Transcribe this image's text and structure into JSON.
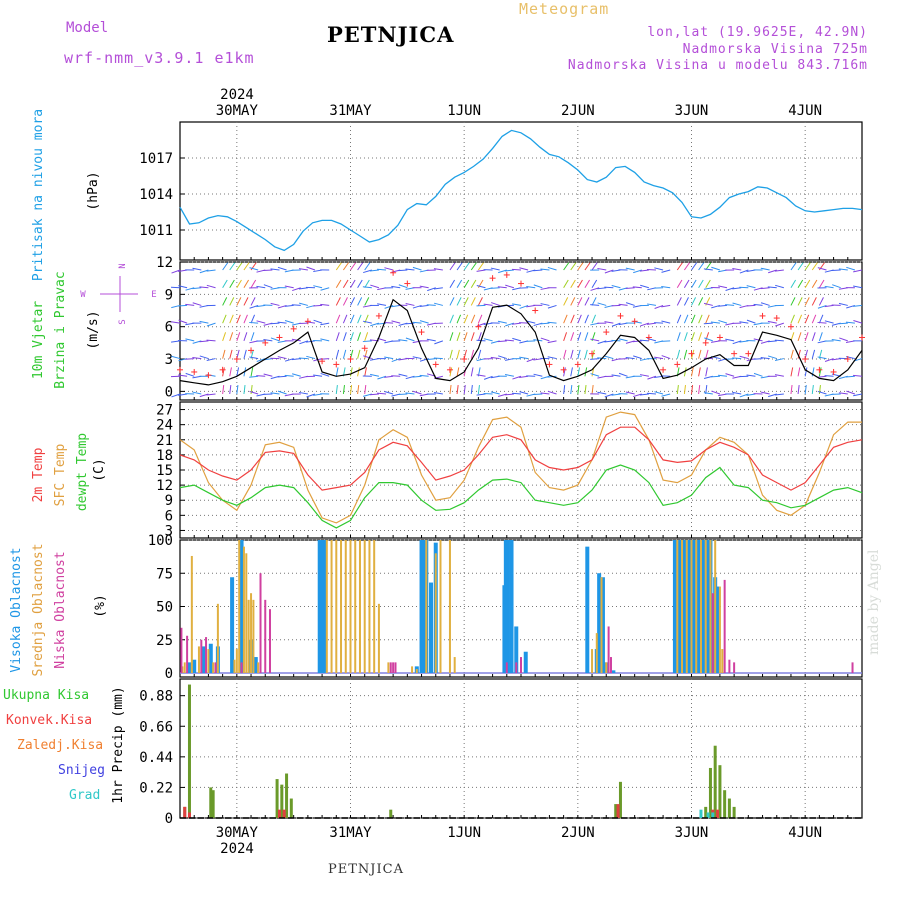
{
  "header": {
    "model_label": "Model",
    "model_name": "wrf-nmm_v3.9.1 e1km",
    "title": "PETNJICA",
    "subtitle": "Meteogram",
    "location_line1": "lon,lat (19.9625E, 42.9N)",
    "location_line2": "Nadmorska Visina 725m",
    "location_line3": "Nadmorska Visina u modelu 843.716m"
  },
  "footer": {
    "station": "PETNJICA"
  },
  "watermark": "made by Angel",
  "time_axis": {
    "year": "2024",
    "day_labels": [
      "30MAY",
      "31MAY",
      "1JUN",
      "2JUN",
      "3JUN",
      "4JUN"
    ],
    "day_positions_h": [
      12,
      36,
      60,
      84,
      108,
      132
    ],
    "range_h": [
      0,
      144
    ]
  },
  "colors": {
    "pressure": "#1ea0e6",
    "wind_speed": "#000000",
    "gust": "#ff3030",
    "temp_2m": "#f04040",
    "temp_sfc": "#e0a040",
    "dewpoint": "#30c830",
    "cloud_high": "#1e96e6",
    "cloud_mid": "#e0b040",
    "cloud_low": "#d040a0",
    "precip_total": "#6a9a2a",
    "precip_convective": "#e04040",
    "precip_frozen": "#f08030",
    "precip_snow": "#4040e0",
    "precip_graupel": "#30c8c8",
    "label_green": "#30c830",
    "label_red": "#f04040",
    "label_orange": "#e0a040",
    "label_magenta": "#d040a0",
    "label_blue": "#4040e0",
    "label_cyan": "#30c8c8",
    "label_purple": "#b44fd8"
  },
  "chart_data": [
    {
      "type": "line",
      "panel": "pressure",
      "ylabel_series": "Pritisak na nivou mora",
      "ylabel_units": "(hPa)",
      "yticks": [
        1011,
        1014,
        1017
      ],
      "ylim": [
        1008.5,
        1020
      ],
      "grid": true,
      "x": [
        0,
        2,
        4,
        6,
        8,
        10,
        12,
        14,
        16,
        18,
        20,
        22,
        24,
        26,
        28,
        30,
        32,
        34,
        36,
        38,
        40,
        42,
        44,
        46,
        48,
        50,
        52,
        54,
        56,
        58,
        60,
        62,
        64,
        66,
        68,
        70,
        72,
        74,
        76,
        78,
        80,
        82,
        84,
        86,
        88,
        90,
        92,
        94,
        96,
        98,
        100,
        102,
        104,
        106,
        108,
        110,
        112,
        114,
        116,
        118,
        120,
        122,
        124,
        126,
        128,
        130,
        132,
        134,
        136,
        138,
        140,
        142,
        144
      ],
      "series": [
        {
          "name": "",
          "values": [
            1012.9,
            1011.5,
            1011.6,
            1012.0,
            1012.2,
            1012.1,
            1011.7,
            1011.2,
            1010.7,
            1010.2,
            1009.6,
            1009.3,
            1009.8,
            1010.9,
            1011.6,
            1011.8,
            1011.8,
            1011.5,
            1011.0,
            1010.5,
            1010.0,
            1010.2,
            1010.6,
            1011.4,
            1012.7,
            1013.2,
            1013.1,
            1013.8,
            1014.8,
            1015.4,
            1015.8,
            1016.3,
            1016.9,
            1017.8,
            1018.8,
            1019.3,
            1019.1,
            1018.6,
            1017.9,
            1017.3,
            1017.1,
            1016.6,
            1016.0,
            1015.2,
            1015.0,
            1015.4,
            1016.2,
            1016.3,
            1015.8,
            1015.0,
            1014.7,
            1014.5,
            1014.1,
            1013.3,
            1012.1,
            1012.0,
            1012.3,
            1012.9,
            1013.7,
            1014.0,
            1014.2,
            1014.6,
            1014.5,
            1014.1,
            1013.7,
            1013.0,
            1012.6,
            1012.5,
            1012.6,
            1012.7,
            1012.8,
            1012.8,
            1012.7
          ]
        }
      ]
    },
    {
      "type": "line",
      "panel": "wind",
      "ylabel_series": "10m Vjetar Brzina i Pravac",
      "ylabel_units": "(m/s)",
      "compass_labels": [
        "N",
        "W",
        "E",
        "S"
      ],
      "yticks": [
        0,
        3,
        6,
        9,
        12
      ],
      "ylim": [
        -0.8,
        12
      ],
      "grid": true,
      "x": [
        0,
        3,
        6,
        9,
        12,
        15,
        18,
        21,
        24,
        27,
        30,
        33,
        36,
        39,
        42,
        45,
        48,
        51,
        54,
        57,
        60,
        63,
        66,
        69,
        72,
        75,
        78,
        81,
        84,
        87,
        90,
        93,
        96,
        99,
        102,
        105,
        108,
        111,
        114,
        117,
        120,
        123,
        126,
        129,
        132,
        135,
        138,
        141,
        144
      ],
      "series": [
        {
          "name": "10m wind speed",
          "values": [
            1.0,
            0.8,
            0.6,
            0.9,
            1.4,
            2.2,
            3.0,
            3.8,
            4.5,
            5.5,
            1.8,
            1.4,
            1.6,
            2.2,
            5.0,
            8.5,
            7.5,
            4.0,
            1.2,
            1.0,
            1.8,
            4.0,
            7.8,
            8.0,
            7.2,
            5.5,
            1.5,
            1.0,
            1.4,
            2.0,
            3.5,
            5.2,
            5.0,
            3.8,
            1.2,
            1.5,
            2.2,
            3.0,
            3.4,
            2.4,
            2.4,
            5.5,
            5.2,
            4.8,
            2.0,
            1.2,
            1.0,
            2.0,
            3.8
          ]
        },
        {
          "name": "gust",
          "values": [
            2.0,
            1.8,
            1.5,
            2.0,
            3.0,
            3.8,
            4.5,
            5.0,
            5.8,
            6.5,
            2.8,
            2.5,
            3.0,
            4.0,
            7.0,
            11.0,
            10.0,
            5.5,
            2.5,
            2.0,
            3.0,
            6.0,
            10.5,
            10.8,
            10.0,
            7.5,
            2.5,
            2.0,
            2.5,
            3.5,
            5.5,
            7.0,
            6.5,
            5.0,
            2.0,
            2.5,
            3.5,
            4.5,
            5.0,
            3.5,
            3.5,
            7.0,
            6.8,
            6.0,
            3.0,
            2.0,
            1.8,
            3.0,
            5.0
          ]
        }
      ]
    },
    {
      "type": "line",
      "panel": "temperature",
      "ylabel_series": [
        "2m Temp",
        "SFC Temp",
        "dewpt Temp"
      ],
      "ylabel_units": "(C)",
      "yticks": [
        3,
        6,
        9,
        12,
        15,
        18,
        21,
        24,
        27
      ],
      "ylim": [
        1.5,
        28.5
      ],
      "grid": true,
      "x": [
        0,
        3,
        6,
        9,
        12,
        15,
        18,
        21,
        24,
        27,
        30,
        33,
        36,
        39,
        42,
        45,
        48,
        51,
        54,
        57,
        60,
        63,
        66,
        69,
        72,
        75,
        78,
        81,
        84,
        87,
        90,
        93,
        96,
        99,
        102,
        105,
        108,
        111,
        114,
        117,
        120,
        123,
        126,
        129,
        132,
        135,
        138,
        141,
        144
      ],
      "series": [
        {
          "name": "2m Temp",
          "values": [
            18.0,
            17.0,
            15.0,
            13.8,
            13.0,
            15.0,
            18.5,
            18.8,
            18.3,
            14.0,
            11.0,
            11.5,
            12.0,
            14.5,
            19.0,
            20.5,
            19.8,
            16.5,
            13.0,
            13.8,
            15.0,
            18.0,
            21.5,
            22.0,
            21.0,
            17.0,
            15.5,
            15.0,
            15.5,
            17.0,
            22.0,
            23.5,
            23.5,
            21.0,
            17.0,
            16.5,
            16.8,
            19.0,
            20.5,
            19.5,
            18.0,
            14.0,
            12.5,
            11.0,
            12.5,
            16.0,
            19.5,
            20.5,
            21.0
          ]
        },
        {
          "name": "SFC Temp",
          "values": [
            21.0,
            19.0,
            12.5,
            9.0,
            7.0,
            12.0,
            20.0,
            20.5,
            19.5,
            11.0,
            5.5,
            4.5,
            6.0,
            12.0,
            21.0,
            23.0,
            21.5,
            14.0,
            9.0,
            9.5,
            13.0,
            19.5,
            25.0,
            25.5,
            23.5,
            14.5,
            11.5,
            11.0,
            12.0,
            17.0,
            25.5,
            26.5,
            26.0,
            21.0,
            13.0,
            12.5,
            14.0,
            19.0,
            21.5,
            20.5,
            18.0,
            10.0,
            7.0,
            6.0,
            8.0,
            14.5,
            22.0,
            24.5,
            24.5
          ]
        },
        {
          "name": "dewpt Temp",
          "values": [
            11.5,
            12.0,
            10.5,
            9.0,
            8.0,
            9.5,
            11.5,
            12.0,
            11.5,
            8.5,
            5.0,
            3.5,
            5.0,
            9.5,
            12.5,
            12.5,
            12.0,
            9.0,
            7.0,
            7.2,
            8.5,
            11.0,
            13.0,
            13.2,
            12.5,
            9.0,
            8.5,
            8.0,
            8.5,
            11.0,
            15.0,
            16.0,
            15.0,
            12.5,
            8.0,
            8.5,
            10.0,
            13.5,
            15.5,
            12.0,
            11.5,
            9.0,
            8.5,
            7.5,
            8.0,
            9.5,
            11.0,
            11.5,
            10.5
          ]
        }
      ]
    },
    {
      "type": "bar",
      "panel": "clouds",
      "ylabel_series": [
        "Visoka Oblacnost",
        "Srednja Oblacnost",
        "Niska Oblacnost"
      ],
      "ylabel_units": "(%)",
      "yticks": [
        0,
        25,
        50,
        75,
        100
      ],
      "ylim": [
        -3,
        100
      ],
      "grid": true,
      "series": [
        {
          "name": "Visoka Oblacnost",
          "x": [
            2,
            3,
            5,
            6.5,
            8,
            11,
            13,
            15,
            16,
            29.5,
            30,
            30.5,
            50,
            51,
            51.5,
            52,
            53,
            54,
            68.5,
            68.8,
            69.2,
            70,
            71,
            73,
            86,
            88,
            88.5,
            89.3,
            90,
            91.5,
            104.5,
            105,
            105.5,
            106,
            106.5,
            107,
            107.5,
            108,
            108.5,
            109,
            109.5,
            110,
            110.5,
            111,
            111.5,
            112,
            113,
            113.5
          ],
          "values": [
            8,
            10,
            20,
            22,
            20,
            72,
            100,
            25,
            12,
            100,
            100,
            100,
            5,
            100,
            100,
            100,
            68,
            98,
            66,
            100,
            100,
            100,
            35,
            16,
            95,
            18,
            75,
            72,
            8,
            2,
            100,
            100,
            100,
            100,
            100,
            100,
            100,
            100,
            100,
            100,
            100,
            100,
            100,
            100,
            100,
            100,
            72,
            65
          ]
        },
        {
          "name": "Srednja Oblacnost",
          "x": [
            0.5,
            1,
            2.5,
            4,
            6,
            7,
            8,
            11.5,
            12,
            12.5,
            13.5,
            14,
            14.5,
            15,
            15.5,
            16.5,
            31,
            32,
            33,
            34,
            35,
            36,
            37,
            38,
            39,
            40,
            41,
            42,
            44,
            49,
            50,
            52,
            54,
            55,
            57,
            58,
            87,
            88,
            89,
            90,
            105,
            106,
            107,
            108,
            109,
            110,
            111,
            112,
            113,
            114,
            114.5
          ],
          "values": [
            5,
            8,
            88,
            20,
            18,
            8,
            52,
            10,
            18,
            100,
            95,
            90,
            55,
            60,
            55,
            8,
            100,
            100,
            100,
            100,
            100,
            100,
            100,
            100,
            100,
            100,
            100,
            52,
            8,
            5,
            3,
            100,
            90,
            100,
            100,
            12,
            18,
            30,
            72,
            8,
            100,
            100,
            100,
            100,
            100,
            100,
            100,
            100,
            100,
            65,
            18
          ]
        },
        {
          "name": "Niska Oblacnost",
          "x": [
            0.3,
            1.5,
            4.5,
            5.5,
            7.5,
            13,
            17,
            18,
            19,
            44.5,
            45,
            45.5,
            69,
            71,
            72,
            90.5,
            91,
            112.5,
            115,
            116,
            117,
            142
          ],
          "values": [
            34,
            28,
            25,
            27,
            8,
            8,
            75,
            55,
            48,
            8,
            8,
            8,
            8,
            8,
            12,
            35,
            12,
            60,
            70,
            10,
            8,
            8
          ]
        }
      ]
    },
    {
      "type": "bar",
      "panel": "precipitation",
      "ylabel_series": [
        "Ukupna Kisa",
        "Konvek.Kisa",
        "Zaledj.Kisa",
        "Snijeg",
        "Grad"
      ],
      "ylabel_units": "1hr Precip (mm)",
      "yticks": [
        0,
        0.22,
        0.44,
        0.66,
        0.88
      ],
      "ylim": [
        0,
        1.0
      ],
      "grid": true,
      "series": [
        {
          "name": "Ukupna Kisa",
          "x": [
            1,
            2,
            6.5,
            7,
            20.5,
            21.5,
            22.5,
            23.5,
            44.5,
            92,
            93,
            111,
            112,
            113,
            114,
            115,
            116,
            117
          ],
          "values": [
            0.08,
            0.96,
            0.22,
            0.2,
            0.28,
            0.24,
            0.32,
            0.14,
            0.06,
            0.1,
            0.26,
            0.08,
            0.36,
            0.52,
            0.38,
            0.2,
            0.14,
            0.08
          ]
        },
        {
          "name": "Konvek.Kisa",
          "x": [
            1,
            2,
            21,
            22,
            92.5,
            112.5,
            113.5
          ],
          "values": [
            0.08,
            0.04,
            0.06,
            0.06,
            0.1,
            0.06,
            0.06
          ]
        },
        {
          "name": "Zaledj.Kisa",
          "x": [],
          "values": []
        },
        {
          "name": "Snijeg",
          "x": [],
          "values": []
        },
        {
          "name": "Grad",
          "x": [
            110,
            111.5,
            112.5
          ],
          "values": [
            0.06,
            0.04,
            0.04
          ]
        }
      ]
    }
  ]
}
